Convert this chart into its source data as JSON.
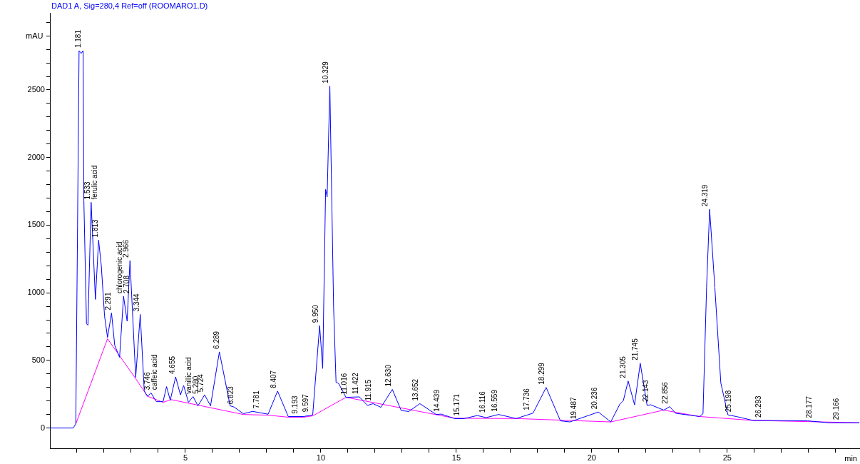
{
  "chart_data": {
    "type": "line",
    "title": "DAD1 A, Sig=280,4 Ref=off (ROOMARO1.D)",
    "xlabel": "min",
    "ylabel": "mAU",
    "marker": "none",
    "line_style": "solid",
    "xlim": [
      0,
      29.9
    ],
    "ylim": [
      -150,
      3070
    ],
    "xticks": [
      {
        "value": 1,
        "label": null
      },
      {
        "value": 2,
        "label": null
      },
      {
        "value": 3,
        "label": null
      },
      {
        "value": 4,
        "label": null
      },
      5,
      {
        "value": 6,
        "label": null
      },
      {
        "value": 7,
        "label": null
      },
      {
        "value": 8,
        "label": null
      },
      {
        "value": 9,
        "label": null
      },
      10,
      {
        "value": 11,
        "label": null
      },
      {
        "value": 12,
        "label": null
      },
      {
        "value": 13,
        "label": null
      },
      {
        "value": 14,
        "label": null
      },
      15,
      {
        "value": 16,
        "label": null
      },
      {
        "value": 17,
        "label": null
      },
      {
        "value": 18,
        "label": null
      },
      {
        "value": 19,
        "label": null
      },
      20,
      {
        "value": 21,
        "label": null
      },
      {
        "value": 22,
        "label": null
      },
      {
        "value": 23,
        "label": null
      },
      {
        "value": 24,
        "label": null
      },
      25,
      {
        "value": 26,
        "label": null
      },
      {
        "value": 27,
        "label": null
      },
      {
        "value": 28,
        "label": null
      },
      {
        "value": 29,
        "label": null
      }
    ],
    "yticks": [
      0,
      {
        "value": 100,
        "label": null
      },
      {
        "value": 200,
        "label": null
      },
      {
        "value": 300,
        "label": null
      },
      {
        "value": 400,
        "label": null
      },
      500,
      {
        "value": 600,
        "label": null
      },
      {
        "value": 700,
        "label": null
      },
      {
        "value": 800,
        "label": null
      },
      {
        "value": 900,
        "label": null
      },
      1000,
      {
        "value": 1100,
        "label": null
      },
      {
        "value": 1200,
        "label": null
      },
      {
        "value": 1300,
        "label": null
      },
      {
        "value": 1400,
        "label": null
      },
      1500,
      {
        "value": 1600,
        "label": null
      },
      {
        "value": 1700,
        "label": null
      },
      {
        "value": 1800,
        "label": null
      },
      {
        "value": 1900,
        "label": null
      },
      2000,
      {
        "value": 2100,
        "label": null
      },
      {
        "value": 2200,
        "label": null
      },
      {
        "value": 2300,
        "label": null
      },
      {
        "value": 2400,
        "label": null
      },
      2500,
      {
        "value": 2600,
        "label": null
      },
      {
        "value": 2700,
        "label": null
      },
      {
        "value": 2800,
        "label": null
      },
      {
        "value": 2900,
        "label": null
      },
      {
        "value": 3000,
        "label": null
      }
    ],
    "series": [
      {
        "color": "#0000ff",
        "x": [
          0,
          0.858,
          0.955,
          1.02,
          1.076,
          1.155,
          1.224,
          1.253,
          1.35,
          1.403,
          1.521,
          1.679,
          1.797,
          1.897,
          2.016,
          2.126,
          2.274,
          2.392,
          2.571,
          2.718,
          2.85,
          2.955,
          3.166,
          3.334,
          3.482,
          3.6,
          3.729,
          3.929,
          4.176,
          4.305,
          4.442,
          4.639,
          4.818,
          4.937,
          5.113,
          5.284,
          5.463,
          5.711,
          5.929,
          6.255,
          6.653,
          6.797,
          7.139,
          7.482,
          8.053,
          8.403,
          8.797,
          9.368,
          9.7,
          9.955,
          10.068,
          10.176,
          10.232,
          10.332,
          10.471,
          10.561,
          10.655,
          10.929,
          11.421,
          11.718,
          11.929,
          12.218,
          12.639,
          12.963,
          13.245,
          13.655,
          14.258,
          14.442,
          14.95,
          15.271,
          15.771,
          16.103,
          16.561,
          17.211,
          17.832,
          18.316,
          18.842,
          19.192,
          20.245,
          20.7,
          21.034,
          21.166,
          21.342,
          21.579,
          21.789,
          22.042,
          22.174,
          22.658,
          22.876,
          23.095,
          23.974,
          24.105,
          24.237,
          24.35,
          24.542,
          24.763,
          25.026,
          25.332,
          25.947,
          27.963,
          28.745,
          29.877
        ],
        "values": [
          0,
          0,
          30,
          1500,
          2790,
          2770,
          2790,
          1685,
          771,
          760,
          1669,
          951,
          1389,
          1200,
          829,
          670,
          850,
          612,
          523,
          974,
          790,
          1238,
          375,
          840,
          275,
          235,
          260,
          195,
          195,
          306,
          205,
          378,
          245,
          314,
          190,
          232,
          164,
          245,
          164,
          563,
          164,
          155,
          106,
          123,
          102,
          273,
          85,
          85,
          97,
          757,
          440,
          1764,
          1709,
          2528,
          893,
          338,
          330,
          227,
          230,
          167,
          180,
          153,
          285,
          130,
          122,
          180,
          100,
          103,
          69,
          69,
          92,
          77,
          100,
          70,
          110,
          300,
          53,
          45,
          118,
          45,
          176,
          203,
          348,
          172,
          479,
          167,
          172,
          132,
          158,
          109,
          85,
          106,
          1040,
          1617,
          1040,
          334,
          97,
          85,
          56,
          53,
          39,
          39
        ]
      },
      {
        "color": "#ff00ff",
        "x": [
          0.955,
          2.126,
          3.166,
          3.6,
          4.176,
          4.474,
          7.139,
          8.053,
          8.797,
          9.368,
          9.7,
          10.929,
          14.95,
          17.211,
          20.7,
          22.658,
          23.974,
          25.947,
          29.877
        ],
        "values": [
          30,
          660,
          365,
          235,
          190,
          210,
          100,
          95,
          80,
          80,
          90,
          227,
          72,
          70,
          45,
          132,
          85,
          56,
          39
        ]
      }
    ],
    "annotations": [
      {
        "text": "1.181",
        "x": 1.181,
        "y": 2790
      },
      {
        "text": "1.533",
        "x": 1.533,
        "y": 1669
      },
      {
        "text": "1.813",
        "x": 1.813,
        "y": 1389
      },
      {
        "text": "ferulic acid",
        "x": 1.533,
        "y": 1669
      },
      {
        "text": "2.291",
        "x": 2.291,
        "y": 850
      },
      {
        "text": "chlorogenic acid",
        "x": 2.708,
        "y": 974
      },
      {
        "text": "2.708",
        "x": 2.708,
        "y": 974
      },
      {
        "text": "2.966",
        "x": 2.966,
        "y": 1238
      },
      {
        "text": "3.344",
        "x": 3.344,
        "y": 840
      },
      {
        "text": "3.746",
        "x": 3.746,
        "y": 260
      },
      {
        "text": "caffeic acid",
        "x": 3.746,
        "y": 260
      },
      {
        "text": "4.655",
        "x": 4.655,
        "y": 378
      },
      {
        "text": "vanillic acid",
        "x": 5.28,
        "y": 232
      },
      {
        "text": "5.280",
        "x": 5.28,
        "y": 232
      },
      {
        "text": "5.724",
        "x": 5.724,
        "y": 245
      },
      {
        "text": "6.289",
        "x": 6.289,
        "y": 563
      },
      {
        "text": "6.823",
        "x": 6.823,
        "y": 155
      },
      {
        "text": "7.781",
        "x": 7.781,
        "y": 123
      },
      {
        "text": "8.407",
        "x": 8.407,
        "y": 273
      },
      {
        "text": "9.193",
        "x": 9.193,
        "y": 85
      },
      {
        "text": "9.597",
        "x": 9.597,
        "y": 97
      },
      {
        "text": "9.950",
        "x": 9.95,
        "y": 757
      },
      {
        "text": "10.329",
        "x": 10.329,
        "y": 2528
      },
      {
        "text": "11.016",
        "x": 11.016,
        "y": 227
      },
      {
        "text": "11.422",
        "x": 11.422,
        "y": 230
      },
      {
        "text": "11.915",
        "x": 11.915,
        "y": 180
      },
      {
        "text": "12.630",
        "x": 12.63,
        "y": 285
      },
      {
        "text": "13.652",
        "x": 13.652,
        "y": 180
      },
      {
        "text": "14.439",
        "x": 14.439,
        "y": 100
      },
      {
        "text": "15.171",
        "x": 15.171,
        "y": 69
      },
      {
        "text": "16.116",
        "x": 16.116,
        "y": 92
      },
      {
        "text": "16.559",
        "x": 16.559,
        "y": 100
      },
      {
        "text": "17.736",
        "x": 17.736,
        "y": 110
      },
      {
        "text": "18.299",
        "x": 18.299,
        "y": 300
      },
      {
        "text": "19.487",
        "x": 19.487,
        "y": 45
      },
      {
        "text": "20.236",
        "x": 20.236,
        "y": 118
      },
      {
        "text": "21.305",
        "x": 21.305,
        "y": 348
      },
      {
        "text": "21.745",
        "x": 21.745,
        "y": 479
      },
      {
        "text": "22.143",
        "x": 22.143,
        "y": 172
      },
      {
        "text": "22.856",
        "x": 22.856,
        "y": 158
      },
      {
        "text": "24.319",
        "x": 24.319,
        "y": 1617
      },
      {
        "text": "25.198",
        "x": 25.198,
        "y": 97
      },
      {
        "text": "26.293",
        "x": 26.293,
        "y": 56
      },
      {
        "text": "28.177",
        "x": 28.177,
        "y": 53
      },
      {
        "text": "29.166",
        "x": 29.166,
        "y": 39
      }
    ]
  }
}
